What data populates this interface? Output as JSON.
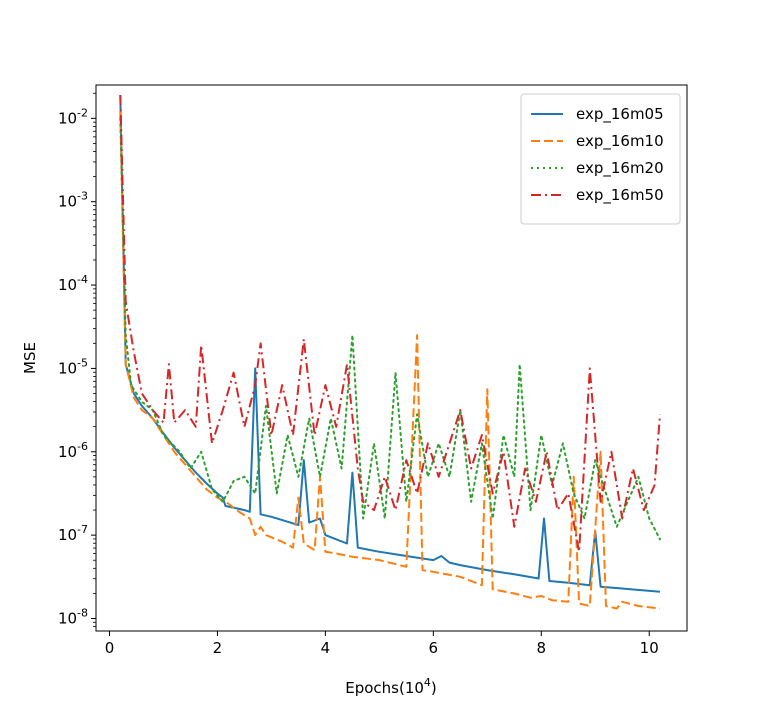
{
  "chart_data": {
    "type": "line",
    "title": "",
    "xlabel": "Epochs(10",
    "xlabel_sup": "4",
    "xlabel_close": ")",
    "ylabel": "MSE",
    "y_scale": "log",
    "xlim": [
      -0.25,
      10.7
    ],
    "ylim_log10": [
      -8.15,
      -1.6
    ],
    "x_ticks": [
      0,
      2,
      4,
      6,
      8,
      10
    ],
    "y_ticks": [
      {
        "base": "10",
        "exp": "-2",
        "log": -2
      },
      {
        "base": "10",
        "exp": "-3",
        "log": -3
      },
      {
        "base": "10",
        "exp": "-4",
        "log": -4
      },
      {
        "base": "10",
        "exp": "-5",
        "log": -5
      },
      {
        "base": "10",
        "exp": "-6",
        "log": -6
      },
      {
        "base": "10",
        "exp": "-7",
        "log": -7
      },
      {
        "base": "10",
        "exp": "-8",
        "log": -8
      }
    ],
    "legend_position": "upper-right",
    "series": [
      {
        "name": "exp_16m05",
        "color": "#1f77b4",
        "dash": "solid",
        "points": [
          [
            0.2,
            -1.72
          ],
          [
            0.3,
            -4.95
          ],
          [
            0.45,
            -5.3
          ],
          [
            0.6,
            -5.45
          ],
          [
            0.8,
            -5.6
          ],
          [
            1.0,
            -5.78
          ],
          [
            1.2,
            -5.95
          ],
          [
            1.4,
            -6.1
          ],
          [
            1.6,
            -6.25
          ],
          [
            1.8,
            -6.38
          ],
          [
            2.0,
            -6.5
          ],
          [
            2.1,
            -6.55
          ],
          [
            2.15,
            -6.65
          ],
          [
            2.3,
            -6.67
          ],
          [
            2.5,
            -6.7
          ],
          [
            2.6,
            -6.72
          ],
          [
            2.7,
            -5.0
          ],
          [
            2.8,
            -6.75
          ],
          [
            3.0,
            -6.78
          ],
          [
            3.2,
            -6.82
          ],
          [
            3.5,
            -6.88
          ],
          [
            3.6,
            -6.1
          ],
          [
            3.7,
            -6.85
          ],
          [
            3.9,
            -6.8
          ],
          [
            4.0,
            -7.0
          ],
          [
            4.2,
            -7.05
          ],
          [
            4.4,
            -7.1
          ],
          [
            4.5,
            -6.25
          ],
          [
            4.6,
            -7.15
          ],
          [
            5.0,
            -7.2
          ],
          [
            5.5,
            -7.25
          ],
          [
            6.0,
            -7.3
          ],
          [
            6.15,
            -7.25
          ],
          [
            6.3,
            -7.33
          ],
          [
            6.5,
            -7.36
          ],
          [
            7.0,
            -7.42
          ],
          [
            7.5,
            -7.47
          ],
          [
            7.95,
            -7.52
          ],
          [
            8.05,
            -6.8
          ],
          [
            8.15,
            -7.55
          ],
          [
            8.5,
            -7.57
          ],
          [
            8.9,
            -7.6
          ],
          [
            9.0,
            -6.95
          ],
          [
            9.1,
            -7.62
          ],
          [
            9.5,
            -7.64
          ],
          [
            10.2,
            -7.68
          ]
        ]
      },
      {
        "name": "exp_16m10",
        "color": "#ff7f0e",
        "dash": "dashed",
        "points": [
          [
            0.2,
            -1.92
          ],
          [
            0.3,
            -4.95
          ],
          [
            0.45,
            -5.35
          ],
          [
            0.6,
            -5.5
          ],
          [
            0.8,
            -5.6
          ],
          [
            1.0,
            -5.8
          ],
          [
            1.2,
            -6.0
          ],
          [
            1.4,
            -6.15
          ],
          [
            1.6,
            -6.3
          ],
          [
            1.8,
            -6.45
          ],
          [
            2.0,
            -6.55
          ],
          [
            2.2,
            -6.62
          ],
          [
            2.4,
            -6.72
          ],
          [
            2.6,
            -6.8
          ],
          [
            2.7,
            -7.0
          ],
          [
            2.8,
            -6.9
          ],
          [
            2.9,
            -7.0
          ],
          [
            3.2,
            -7.08
          ],
          [
            3.4,
            -7.15
          ],
          [
            3.5,
            -6.55
          ],
          [
            3.6,
            -7.1
          ],
          [
            3.8,
            -7.18
          ],
          [
            3.9,
            -6.3
          ],
          [
            4.0,
            -7.2
          ],
          [
            4.2,
            -7.22
          ],
          [
            4.5,
            -7.26
          ],
          [
            5.0,
            -7.3
          ],
          [
            5.5,
            -7.38
          ],
          [
            5.7,
            -4.6
          ],
          [
            5.8,
            -7.42
          ],
          [
            6.0,
            -7.44
          ],
          [
            6.5,
            -7.5
          ],
          [
            6.9,
            -7.6
          ],
          [
            7.0,
            -5.25
          ],
          [
            7.1,
            -7.65
          ],
          [
            7.5,
            -7.7
          ],
          [
            7.8,
            -7.75
          ],
          [
            8.0,
            -7.73
          ],
          [
            8.2,
            -7.78
          ],
          [
            8.5,
            -7.8
          ],
          [
            8.6,
            -6.3
          ],
          [
            8.7,
            -7.82
          ],
          [
            8.9,
            -7.85
          ],
          [
            9.1,
            -6.0
          ],
          [
            9.2,
            -7.85
          ],
          [
            9.4,
            -7.88
          ],
          [
            9.5,
            -7.8
          ],
          [
            9.8,
            -7.85
          ],
          [
            10.2,
            -7.88
          ]
        ]
      },
      {
        "name": "exp_16m20",
        "color": "#2ca02c",
        "dash": "dotted",
        "points": [
          [
            0.2,
            -2.0
          ],
          [
            0.3,
            -4.6
          ],
          [
            0.4,
            -5.2
          ],
          [
            0.6,
            -5.4
          ],
          [
            0.8,
            -5.5
          ],
          [
            1.0,
            -5.8
          ],
          [
            1.3,
            -6.0
          ],
          [
            1.5,
            -6.2
          ],
          [
            1.7,
            -6.0
          ],
          [
            1.9,
            -6.45
          ],
          [
            2.1,
            -6.6
          ],
          [
            2.3,
            -6.35
          ],
          [
            2.5,
            -6.3
          ],
          [
            2.7,
            -6.5
          ],
          [
            2.9,
            -5.45
          ],
          [
            3.1,
            -6.5
          ],
          [
            3.3,
            -5.8
          ],
          [
            3.5,
            -6.3
          ],
          [
            3.7,
            -5.6
          ],
          [
            3.9,
            -6.3
          ],
          [
            4.1,
            -5.6
          ],
          [
            4.3,
            -6.2
          ],
          [
            4.5,
            -4.6
          ],
          [
            4.7,
            -6.8
          ],
          [
            4.9,
            -5.9
          ],
          [
            5.1,
            -6.8
          ],
          [
            5.3,
            -5.05
          ],
          [
            5.5,
            -6.6
          ],
          [
            5.7,
            -5.55
          ],
          [
            5.9,
            -6.3
          ],
          [
            6.1,
            -5.9
          ],
          [
            6.3,
            -6.3
          ],
          [
            6.5,
            -5.5
          ],
          [
            6.7,
            -6.6
          ],
          [
            6.9,
            -5.9
          ],
          [
            7.1,
            -6.8
          ],
          [
            7.3,
            -5.8
          ],
          [
            7.5,
            -6.3
          ],
          [
            7.6,
            -4.95
          ],
          [
            7.8,
            -6.7
          ],
          [
            8.0,
            -5.8
          ],
          [
            8.2,
            -6.4
          ],
          [
            8.4,
            -5.9
          ],
          [
            8.6,
            -6.5
          ],
          [
            8.8,
            -6.8
          ],
          [
            9.0,
            -6.1
          ],
          [
            9.2,
            -6.5
          ],
          [
            9.4,
            -6.9
          ],
          [
            9.6,
            -6.6
          ],
          [
            9.8,
            -6.3
          ],
          [
            10.0,
            -6.8
          ],
          [
            10.2,
            -7.05
          ]
        ]
      },
      {
        "name": "exp_16m50",
        "color": "#d62728",
        "dash": "dashdot",
        "points": [
          [
            0.2,
            -1.72
          ],
          [
            0.3,
            -4.2
          ],
          [
            0.45,
            -4.8
          ],
          [
            0.6,
            -5.3
          ],
          [
            0.8,
            -5.5
          ],
          [
            1.0,
            -5.65
          ],
          [
            1.1,
            -4.95
          ],
          [
            1.2,
            -5.65
          ],
          [
            1.4,
            -5.5
          ],
          [
            1.6,
            -5.7
          ],
          [
            1.7,
            -4.72
          ],
          [
            1.9,
            -5.9
          ],
          [
            2.1,
            -5.5
          ],
          [
            2.3,
            -5.05
          ],
          [
            2.5,
            -5.7
          ],
          [
            2.7,
            -5.2
          ],
          [
            2.8,
            -4.7
          ],
          [
            3.0,
            -5.8
          ],
          [
            3.2,
            -5.2
          ],
          [
            3.4,
            -5.8
          ],
          [
            3.6,
            -4.65
          ],
          [
            3.8,
            -5.8
          ],
          [
            4.0,
            -5.2
          ],
          [
            4.2,
            -5.7
          ],
          [
            4.4,
            -4.95
          ],
          [
            4.6,
            -6.2
          ],
          [
            4.7,
            -6.6
          ],
          [
            4.9,
            -6.7
          ],
          [
            5.1,
            -6.3
          ],
          [
            5.3,
            -6.7
          ],
          [
            5.5,
            -6.1
          ],
          [
            5.7,
            -6.5
          ],
          [
            5.9,
            -5.9
          ],
          [
            6.1,
            -6.3
          ],
          [
            6.3,
            -5.9
          ],
          [
            6.5,
            -5.5
          ],
          [
            6.7,
            -6.2
          ],
          [
            6.9,
            -5.8
          ],
          [
            7.1,
            -6.5
          ],
          [
            7.3,
            -6.0
          ],
          [
            7.5,
            -6.9
          ],
          [
            7.7,
            -6.2
          ],
          [
            7.9,
            -6.6
          ],
          [
            8.1,
            -6.0
          ],
          [
            8.3,
            -6.7
          ],
          [
            8.5,
            -6.5
          ],
          [
            8.7,
            -7.2
          ],
          [
            8.9,
            -5.0
          ],
          [
            9.1,
            -6.6
          ],
          [
            9.3,
            -6.0
          ],
          [
            9.5,
            -6.8
          ],
          [
            9.7,
            -6.2
          ],
          [
            9.9,
            -6.7
          ],
          [
            10.1,
            -6.4
          ],
          [
            10.2,
            -5.55
          ]
        ]
      }
    ]
  }
}
